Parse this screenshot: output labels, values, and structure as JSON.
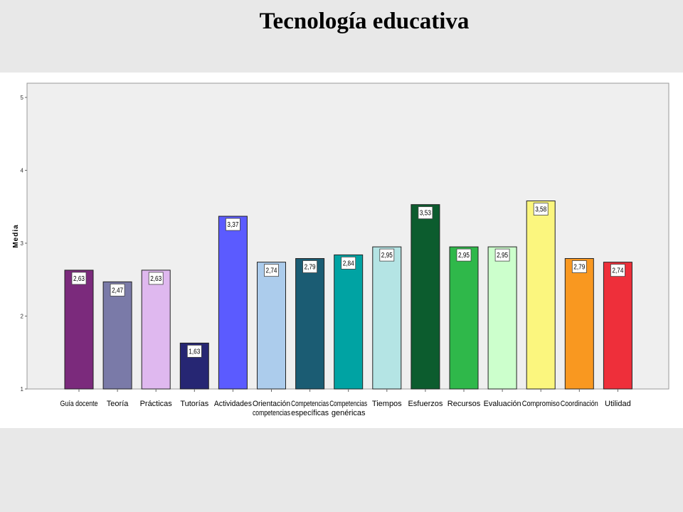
{
  "slide": {
    "title": "Tecnología educativa"
  },
  "chart_data": {
    "type": "bar",
    "title": "",
    "xlabel": "",
    "ylabel": "Media",
    "ylim": [
      1,
      5
    ],
    "yticks": [
      "1",
      "2",
      "3",
      "4",
      "5"
    ],
    "grid": false,
    "legend": "none",
    "categories": [
      [
        "Guía docente"
      ],
      [
        "Teoría"
      ],
      [
        "Prácticas"
      ],
      [
        "Tutorías"
      ],
      [
        "Actividades"
      ],
      [
        "Orientación",
        "competencias"
      ],
      [
        "Competencias",
        "específicas"
      ],
      [
        "Competencias",
        "genéricas"
      ],
      [
        "Tiempos"
      ],
      [
        "Esfuerzos"
      ],
      [
        "Recursos"
      ],
      [
        "Evaluación"
      ],
      [
        "Compromiso"
      ],
      [
        "Coordinación"
      ],
      [
        "Utilidad"
      ]
    ],
    "values": [
      2.63,
      2.47,
      2.63,
      1.63,
      3.37,
      2.74,
      2.79,
      2.84,
      2.95,
      3.53,
      2.95,
      2.95,
      3.58,
      2.79,
      2.74
    ],
    "data_labels": [
      "2,63",
      "2,47",
      "2,63",
      "1,63",
      "3,37",
      "2,74",
      "2,79",
      "2,84",
      "2,95",
      "3,53",
      "2,95",
      "2,95",
      "3,58",
      "2,79",
      "2,74"
    ],
    "colors": [
      "#7b2a7c",
      "#7a7aa8",
      "#dfb8ef",
      "#262673",
      "#5b5bff",
      "#acccec",
      "#1b5c73",
      "#00a3a3",
      "#b4e4e4",
      "#0c5c2e",
      "#2fb84a",
      "#ccffcc",
      "#fbf67e",
      "#f99820",
      "#ee2f3a"
    ],
    "plot_background": "#efefef"
  }
}
